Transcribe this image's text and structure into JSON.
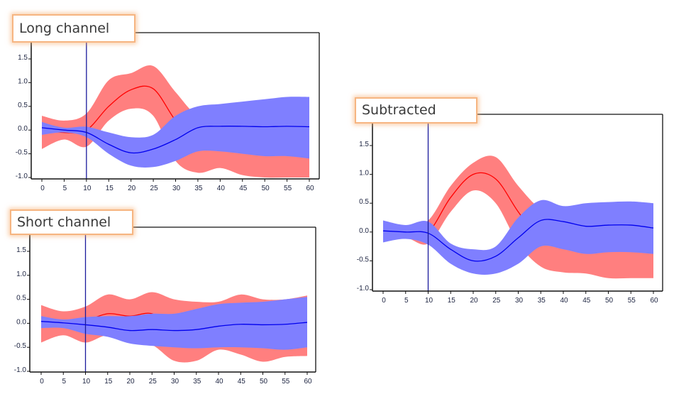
{
  "chart_data": [
    {
      "type": "area",
      "title": "Long channel",
      "x": [
        0,
        5,
        10,
        15,
        20,
        25,
        30,
        35,
        40,
        45,
        50,
        55,
        60
      ],
      "xticks": [
        "0",
        "5",
        "10",
        "15",
        "20",
        "25",
        "30",
        "35",
        "40",
        "45",
        "50",
        "55",
        "60"
      ],
      "yticks": [
        "1.5",
        "1.0",
        "0.5",
        "0.0",
        "-0.5",
        "-1.0"
      ],
      "ylim": [
        -1.0,
        1.9
      ],
      "xlim": [
        0,
        60
      ],
      "marker_x": 10,
      "series": [
        {
          "color": "#ff0000",
          "band_color": "#ff7f7f",
          "mean": [
            0.0,
            -0.05,
            0.0,
            0.5,
            0.85,
            0.87,
            0.2,
            -0.3,
            -0.4,
            -0.35,
            -0.35,
            -0.3,
            -0.3
          ],
          "upper": [
            0.3,
            0.2,
            0.35,
            1.05,
            1.2,
            1.35,
            0.8,
            0.3,
            0.3,
            0.3,
            0.3,
            0.3,
            0.3
          ],
          "lower": [
            -0.4,
            -0.2,
            -0.35,
            0.2,
            0.45,
            0.3,
            -0.65,
            -0.9,
            -0.8,
            -0.95,
            -1.0,
            -1.0,
            -1.0
          ]
        },
        {
          "color": "#0000ee",
          "band_color": "#7f7fff",
          "mean": [
            0.05,
            0.0,
            -0.05,
            -0.3,
            -0.48,
            -0.4,
            -0.2,
            0.05,
            0.08,
            0.08,
            0.07,
            0.08,
            0.07
          ],
          "upper": [
            0.17,
            0.05,
            0.07,
            -0.05,
            -0.15,
            -0.1,
            0.3,
            0.5,
            0.55,
            0.6,
            0.65,
            0.7,
            0.7
          ],
          "lower": [
            -0.1,
            -0.05,
            -0.15,
            -0.5,
            -0.75,
            -0.78,
            -0.65,
            -0.45,
            -0.45,
            -0.5,
            -0.55,
            -0.55,
            -0.6
          ]
        }
      ]
    },
    {
      "type": "area",
      "title": "Short channel",
      "x": [
        0,
        5,
        10,
        15,
        20,
        25,
        30,
        35,
        40,
        45,
        50,
        55,
        60
      ],
      "xticks": [
        "0",
        "5",
        "10",
        "15",
        "20",
        "25",
        "30",
        "35",
        "40",
        "45",
        "50",
        "55",
        "60"
      ],
      "yticks": [
        "1.5",
        "1.0",
        "0.5",
        "0.0",
        "-0.5",
        "-1.0"
      ],
      "ylim": [
        -1.0,
        1.9
      ],
      "xlim": [
        0,
        60
      ],
      "marker_x": 10,
      "series": [
        {
          "color": "#ff0000",
          "band_color": "#ff7f7f",
          "mean": [
            0.0,
            -0.02,
            0.05,
            0.2,
            0.15,
            0.2,
            -0.1,
            -0.15,
            -0.05,
            -0.05,
            -0.1,
            -0.05,
            -0.05
          ],
          "upper": [
            0.38,
            0.25,
            0.35,
            0.6,
            0.5,
            0.65,
            0.5,
            0.45,
            0.45,
            0.6,
            0.5,
            0.5,
            0.58
          ],
          "lower": [
            -0.4,
            -0.25,
            -0.4,
            -0.25,
            -0.4,
            -0.45,
            -0.78,
            -0.78,
            -0.55,
            -0.65,
            -0.8,
            -0.7,
            -0.68
          ]
        },
        {
          "color": "#0000ee",
          "band_color": "#7f7fff",
          "mean": [
            0.04,
            0.01,
            -0.03,
            -0.08,
            -0.15,
            -0.13,
            -0.15,
            -0.13,
            -0.06,
            -0.02,
            -0.03,
            -0.02,
            0.02
          ],
          "upper": [
            0.15,
            0.08,
            0.13,
            0.15,
            0.15,
            0.2,
            0.2,
            0.3,
            0.4,
            0.43,
            0.45,
            0.5,
            0.55
          ],
          "lower": [
            -0.1,
            -0.1,
            -0.22,
            -0.28,
            -0.42,
            -0.47,
            -0.5,
            -0.52,
            -0.5,
            -0.5,
            -0.52,
            -0.55,
            -0.5
          ]
        }
      ]
    },
    {
      "type": "area",
      "title": "Subtracted",
      "x": [
        0,
        5,
        10,
        15,
        20,
        25,
        30,
        35,
        40,
        45,
        50,
        55,
        60
      ],
      "xticks": [
        "0",
        "5",
        "10",
        "15",
        "20",
        "25",
        "30",
        "35",
        "40",
        "45",
        "50",
        "55",
        "60"
      ],
      "yticks": [
        "1.5",
        "1.0",
        "0.5",
        "0.0",
        "-0.5",
        "-1.0"
      ],
      "ylim": [
        -1.0,
        1.9
      ],
      "xlim": [
        0,
        60
      ],
      "marker_x": 10,
      "series": [
        {
          "color": "#ff0000",
          "band_color": "#ff7f7f",
          "mean": [
            0.0,
            0.0,
            0.0,
            0.6,
            1.0,
            0.92,
            0.35,
            -0.15,
            -0.2,
            -0.25,
            -0.25,
            -0.25,
            -0.25
          ],
          "upper": [
            0.15,
            0.1,
            0.2,
            0.8,
            1.2,
            1.3,
            0.8,
            0.4,
            0.3,
            0.3,
            0.3,
            0.3,
            0.3
          ],
          "lower": [
            -0.15,
            -0.1,
            -0.2,
            0.35,
            0.72,
            0.5,
            -0.2,
            -0.6,
            -0.7,
            -0.72,
            -0.8,
            -0.8,
            -0.8
          ]
        },
        {
          "color": "#0000ee",
          "band_color": "#7f7fff",
          "mean": [
            0.02,
            0.0,
            -0.02,
            -0.3,
            -0.5,
            -0.42,
            -0.1,
            0.2,
            0.18,
            0.1,
            0.12,
            0.12,
            0.07
          ],
          "upper": [
            0.2,
            0.12,
            0.18,
            -0.2,
            -0.3,
            -0.25,
            0.25,
            0.55,
            0.45,
            0.5,
            0.52,
            0.53,
            0.5
          ],
          "lower": [
            -0.18,
            -0.12,
            -0.22,
            -0.55,
            -0.72,
            -0.72,
            -0.55,
            -0.25,
            -0.3,
            -0.38,
            -0.35,
            -0.35,
            -0.38
          ]
        }
      ]
    }
  ]
}
